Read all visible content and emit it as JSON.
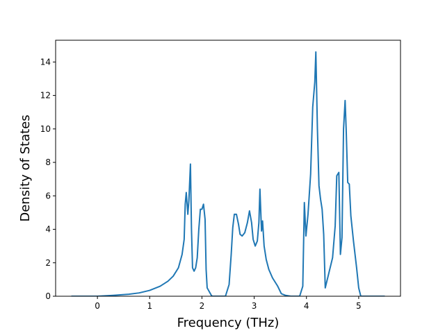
{
  "chart_data": {
    "type": "line",
    "title": "",
    "xlabel": "Frequency (THz)",
    "ylabel": "Density of States",
    "xlim": [
      -0.8,
      5.8
    ],
    "ylim": [
      0,
      15.3
    ],
    "xticks": [
      0,
      1,
      2,
      3,
      4,
      5
    ],
    "yticks": [
      0,
      2,
      4,
      6,
      8,
      10,
      12,
      14
    ],
    "grid": false,
    "legend": "none",
    "series": [
      {
        "color": "#1f77b4",
        "points": [
          [
            -0.5,
            0.0
          ],
          [
            0.0,
            0.0
          ],
          [
            0.3,
            0.05
          ],
          [
            0.6,
            0.12
          ],
          [
            0.8,
            0.2
          ],
          [
            1.0,
            0.35
          ],
          [
            1.2,
            0.6
          ],
          [
            1.35,
            0.9
          ],
          [
            1.45,
            1.2
          ],
          [
            1.55,
            1.7
          ],
          [
            1.62,
            2.5
          ],
          [
            1.66,
            3.4
          ],
          [
            1.68,
            5.5
          ],
          [
            1.7,
            6.2
          ],
          [
            1.73,
            4.9
          ],
          [
            1.75,
            5.7
          ],
          [
            1.78,
            7.9
          ],
          [
            1.8,
            4.0
          ],
          [
            1.82,
            1.7
          ],
          [
            1.85,
            1.5
          ],
          [
            1.88,
            1.7
          ],
          [
            1.91,
            2.3
          ],
          [
            1.94,
            4.0
          ],
          [
            1.97,
            5.2
          ],
          [
            2.0,
            5.2
          ],
          [
            2.03,
            5.5
          ],
          [
            2.06,
            4.6
          ],
          [
            2.08,
            1.6
          ],
          [
            2.1,
            0.5
          ],
          [
            2.18,
            0.05
          ],
          [
            2.2,
            0.0
          ],
          [
            2.45,
            0.0
          ],
          [
            2.52,
            0.7
          ],
          [
            2.56,
            2.5
          ],
          [
            2.59,
            4.1
          ],
          [
            2.62,
            4.9
          ],
          [
            2.66,
            4.9
          ],
          [
            2.7,
            4.3
          ],
          [
            2.73,
            3.7
          ],
          [
            2.77,
            3.6
          ],
          [
            2.82,
            3.8
          ],
          [
            2.87,
            4.4
          ],
          [
            2.91,
            5.1
          ],
          [
            2.95,
            4.4
          ],
          [
            2.98,
            3.4
          ],
          [
            3.02,
            3.0
          ],
          [
            3.06,
            3.3
          ],
          [
            3.09,
            4.4
          ],
          [
            3.11,
            6.4
          ],
          [
            3.14,
            3.9
          ],
          [
            3.16,
            4.5
          ],
          [
            3.19,
            3.0
          ],
          [
            3.23,
            2.2
          ],
          [
            3.28,
            1.6
          ],
          [
            3.35,
            1.1
          ],
          [
            3.45,
            0.6
          ],
          [
            3.52,
            0.15
          ],
          [
            3.6,
            0.05
          ],
          [
            3.7,
            0.0
          ],
          [
            3.87,
            0.0
          ],
          [
            3.93,
            0.6
          ],
          [
            3.96,
            5.6
          ],
          [
            3.99,
            3.6
          ],
          [
            4.03,
            4.9
          ],
          [
            4.08,
            7.3
          ],
          [
            4.12,
            11.3
          ],
          [
            4.16,
            12.8
          ],
          [
            4.18,
            14.6
          ],
          [
            4.21,
            10.0
          ],
          [
            4.24,
            6.6
          ],
          [
            4.27,
            5.8
          ],
          [
            4.3,
            5.2
          ],
          [
            4.33,
            3.7
          ],
          [
            4.36,
            0.5
          ],
          [
            4.43,
            1.4
          ],
          [
            4.5,
            2.3
          ],
          [
            4.55,
            4.2
          ],
          [
            4.58,
            7.2
          ],
          [
            4.62,
            7.4
          ],
          [
            4.65,
            2.5
          ],
          [
            4.68,
            3.5
          ],
          [
            4.71,
            10.0
          ],
          [
            4.74,
            11.7
          ],
          [
            4.76,
            10.0
          ],
          [
            4.79,
            6.8
          ],
          [
            4.82,
            6.7
          ],
          [
            4.85,
            4.8
          ],
          [
            4.9,
            3.3
          ],
          [
            4.96,
            1.7
          ],
          [
            5.0,
            0.5
          ],
          [
            5.04,
            0.0
          ],
          [
            5.5,
            0.0
          ]
        ]
      }
    ]
  }
}
